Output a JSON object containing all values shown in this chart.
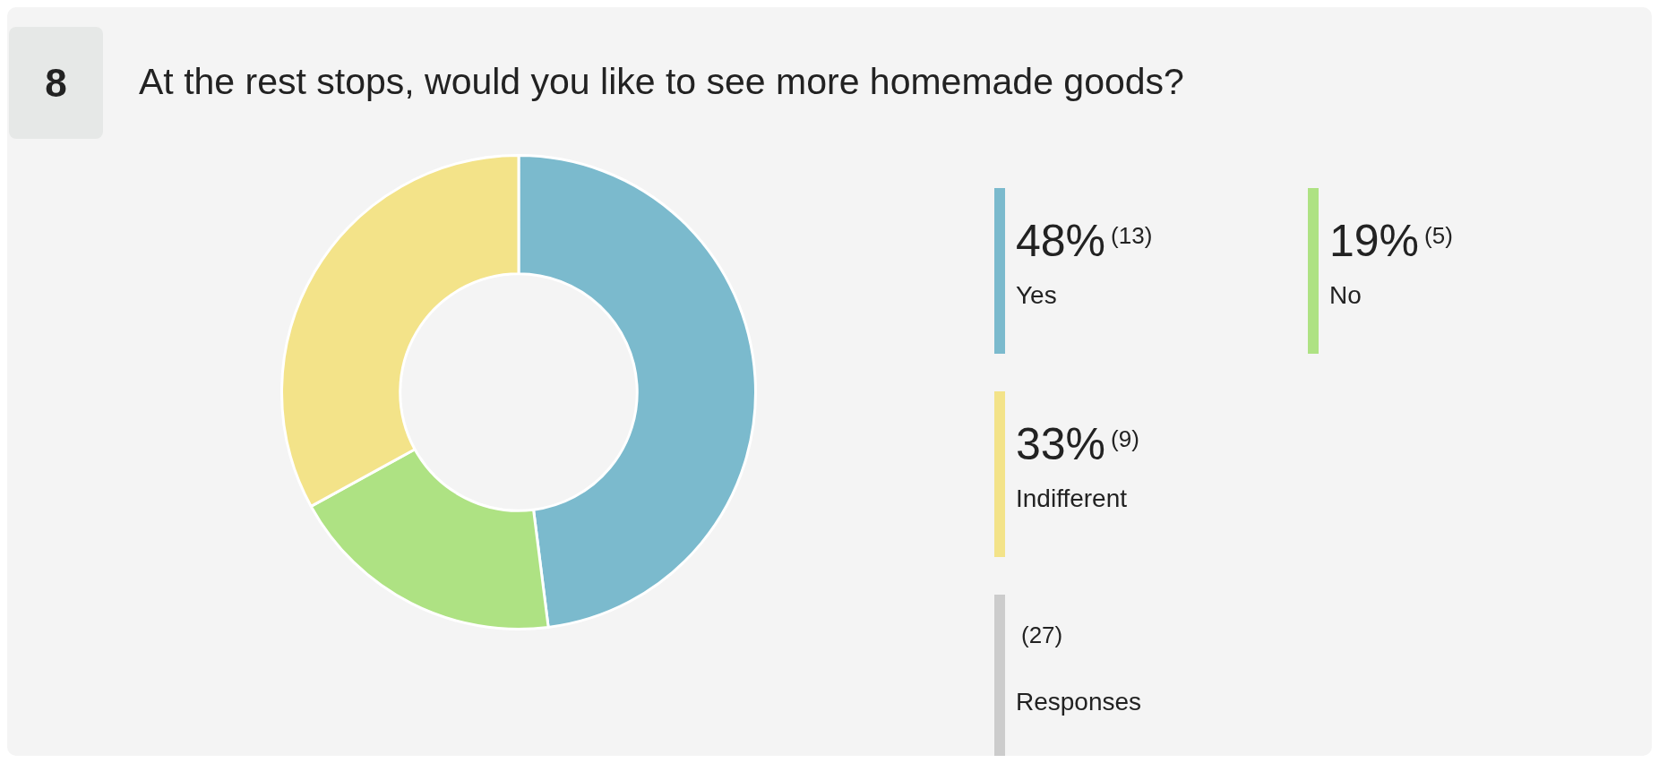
{
  "chart_data": {
    "type": "donut",
    "title": "At the rest stops, would you like to see more homemade goods?",
    "categories": [
      "Yes",
      "No",
      "Indifferent"
    ],
    "values": [
      48,
      19,
      33
    ],
    "value_labels": [
      "48%",
      "19%",
      "33%"
    ],
    "colors": [
      "#7bbacd",
      "#aee283",
      "#f3e389"
    ],
    "legend": "right",
    "annotations": [
      "8",
      "(13)",
      "(5)",
      "(9)",
      "(27)",
      "Responses"
    ]
  }
}
